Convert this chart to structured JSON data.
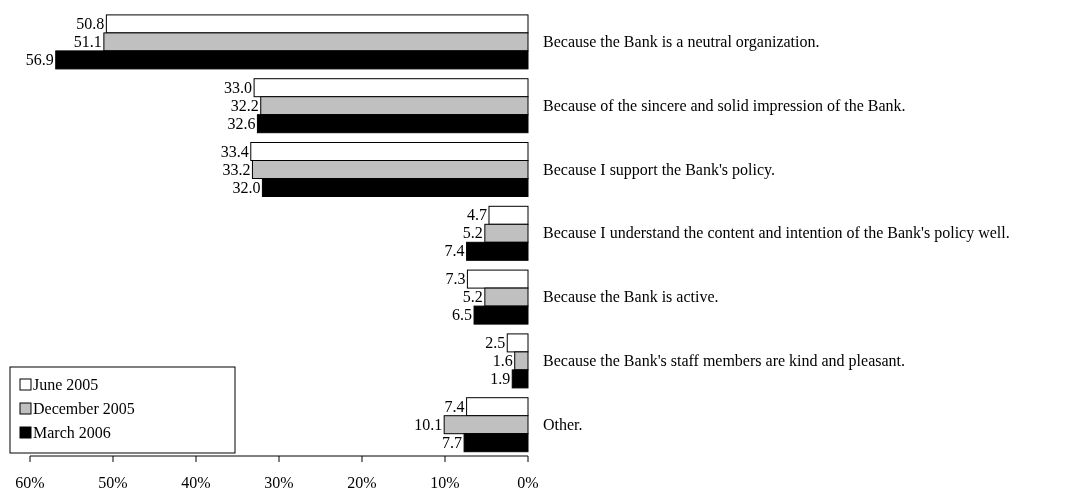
{
  "chart_data": {
    "type": "bar",
    "orientation": "horizontal",
    "categories": [
      "Because the Bank is a neutral organization.",
      "Because of the sincere and solid impression of the Bank.",
      "Because I support the Bank's policy.",
      "Because I understand the content and intention of the Bank's policy well.",
      "Because the Bank is active.",
      "Because the Bank's staff members are kind and pleasant.",
      "Other."
    ],
    "series": [
      {
        "name": "June 2005",
        "color": "#ffffff",
        "values": [
          50.8,
          33.0,
          33.4,
          4.7,
          7.3,
          2.5,
          7.4
        ],
        "value_labels": [
          "50.8",
          "33.0",
          "33.4",
          "4.7",
          "7.3",
          "2.5",
          "7.4"
        ]
      },
      {
        "name": "December 2005",
        "color": "#c0c0c0",
        "values": [
          51.1,
          32.2,
          33.2,
          5.2,
          5.2,
          1.6,
          10.1
        ],
        "value_labels": [
          "51.1",
          "32.2",
          "33.2",
          "5.2",
          "5.2",
          "1.6",
          "10.1"
        ]
      },
      {
        "name": "March 2006",
        "color": "#000000",
        "values": [
          56.9,
          32.6,
          32.0,
          7.4,
          6.5,
          1.9,
          7.7
        ],
        "value_labels": [
          "56.9",
          "32.6",
          "32.0",
          "7.4",
          "6.5",
          "1.9",
          "7.7"
        ]
      }
    ],
    "xlim": [
      60,
      0
    ],
    "xticks": [
      {
        "value": 60,
        "label": "60%"
      },
      {
        "value": 50,
        "label": "50%"
      },
      {
        "value": 40,
        "label": "40%"
      },
      {
        "value": 30,
        "label": "30%"
      },
      {
        "value": 20,
        "label": "20%"
      },
      {
        "value": 10,
        "label": "10%"
      },
      {
        "value": 0,
        "label": "0%"
      }
    ],
    "grid": false,
    "legend": "bottom left"
  }
}
